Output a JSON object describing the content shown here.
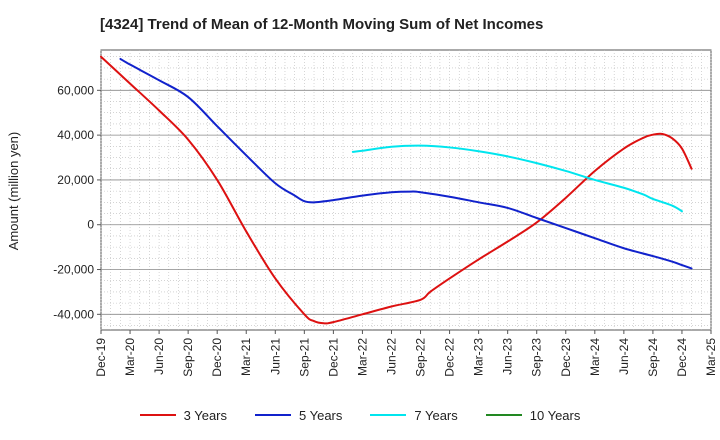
{
  "chart_data": {
    "type": "line",
    "title": "[4324]  Trend of Mean of 12-Month Moving Sum of Net Incomes",
    "xlabel": "",
    "ylabel": "Amount (million yen)",
    "categories": [
      "Dec-19",
      "Mar-20",
      "Jun-20",
      "Sep-20",
      "Dec-20",
      "Mar-21",
      "Jun-21",
      "Sep-21",
      "Dec-21",
      "Mar-22",
      "Jun-22",
      "Sep-22",
      "Dec-22",
      "Mar-23",
      "Jun-23",
      "Sep-23",
      "Dec-23",
      "Mar-24",
      "Jun-24",
      "Sep-24",
      "Dec-24",
      "Mar-25"
    ],
    "ylim": [
      -47000,
      78000
    ],
    "yticks": [
      -40000,
      -20000,
      0,
      20000,
      40000,
      60000
    ],
    "ytick_labels": [
      "-40,000",
      "-20,000",
      "0",
      "20,000",
      "40,000",
      "60,000"
    ],
    "grid": true,
    "legend_position": "bottom",
    "series": [
      {
        "name": "3 Years",
        "color": "#dd1111",
        "points": [
          [
            0,
            75000
          ],
          [
            1,
            63000
          ],
          [
            2,
            51000
          ],
          [
            3,
            38000
          ],
          [
            4,
            20000
          ],
          [
            5,
            -3000
          ],
          [
            6,
            -24000
          ],
          [
            7,
            -40000
          ],
          [
            7.33,
            -43000
          ],
          [
            7.67,
            -44000
          ],
          [
            8,
            -43500
          ],
          [
            9,
            -40000
          ],
          [
            10,
            -36500
          ],
          [
            11,
            -33500
          ],
          [
            11.33,
            -30000
          ],
          [
            12,
            -24000
          ],
          [
            13,
            -15500
          ],
          [
            14,
            -7500
          ],
          [
            15,
            1000
          ],
          [
            16,
            12000
          ],
          [
            17,
            24000
          ],
          [
            18,
            34000
          ],
          [
            18.67,
            38800
          ],
          [
            19,
            40200
          ],
          [
            19.33,
            40500
          ],
          [
            19.67,
            38500
          ],
          [
            20,
            34000
          ],
          [
            20.33,
            25000
          ]
        ]
      },
      {
        "name": "5 Years",
        "color": "#1122cc",
        "points": [
          [
            0.67,
            74000
          ],
          [
            1,
            71500
          ],
          [
            2,
            64500
          ],
          [
            3,
            57000
          ],
          [
            4,
            44000
          ],
          [
            5,
            31000
          ],
          [
            6,
            18500
          ],
          [
            6.67,
            13000
          ],
          [
            7,
            10500
          ],
          [
            7.33,
            10000
          ],
          [
            8,
            11000
          ],
          [
            9,
            13000
          ],
          [
            10,
            14500
          ],
          [
            10.67,
            14800
          ],
          [
            11,
            14500
          ],
          [
            12,
            12500
          ],
          [
            13,
            10000
          ],
          [
            14,
            7500
          ],
          [
            15,
            3000
          ],
          [
            16,
            -1500
          ],
          [
            17,
            -6000
          ],
          [
            18,
            -10500
          ],
          [
            19,
            -14000
          ],
          [
            19.67,
            -16500
          ],
          [
            20,
            -18000
          ],
          [
            20.33,
            -19500
          ]
        ]
      },
      {
        "name": "7 Years",
        "color": "#00e5ee",
        "points": [
          [
            8.67,
            32500
          ],
          [
            9,
            33000
          ],
          [
            10,
            34800
          ],
          [
            11,
            35300
          ],
          [
            12,
            34500
          ],
          [
            13,
            32800
          ],
          [
            14,
            30500
          ],
          [
            15,
            27500
          ],
          [
            16,
            24000
          ],
          [
            17,
            20000
          ],
          [
            18,
            16500
          ],
          [
            18.67,
            13500
          ],
          [
            19,
            11500
          ],
          [
            19.67,
            8500
          ],
          [
            20,
            6000
          ]
        ]
      },
      {
        "name": "10 Years",
        "color": "#228822",
        "points": []
      }
    ]
  }
}
